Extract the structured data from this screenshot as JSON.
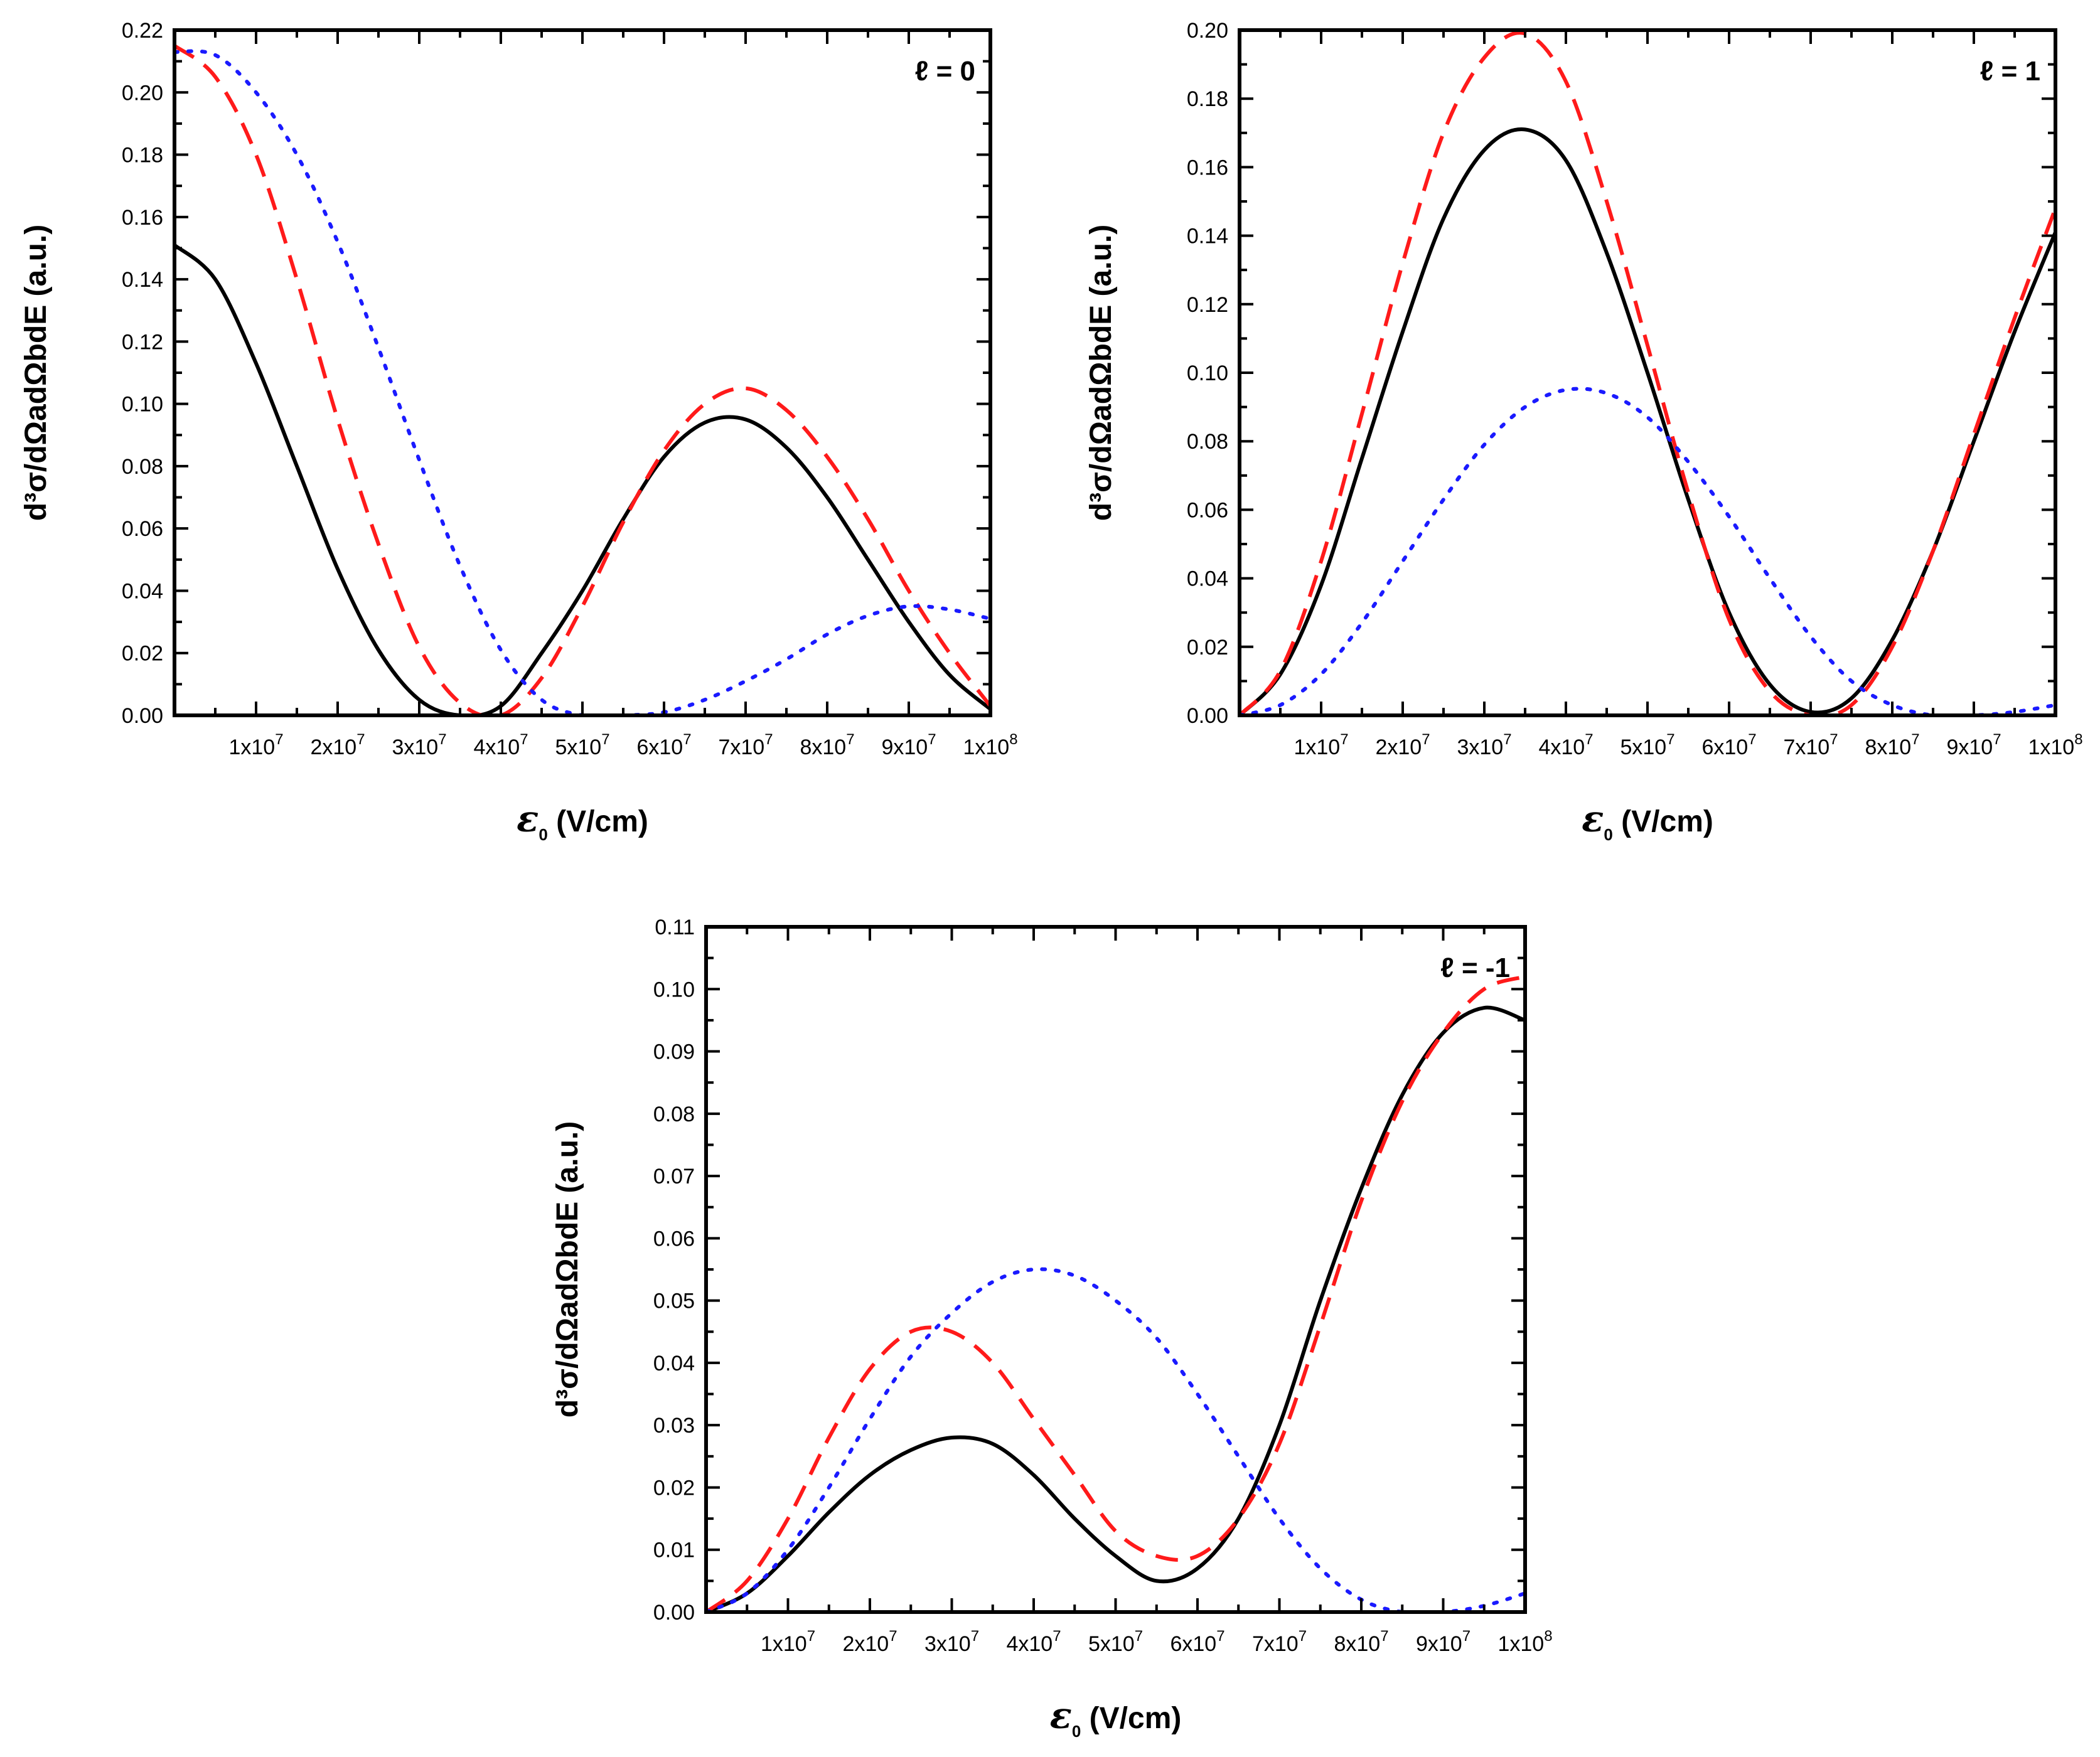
{
  "chart_data": [
    {
      "type": "line",
      "panel_label": "ℓ = 0",
      "xlabel_symbol": "ε",
      "xlabel_subscript": "0",
      "xlabel_units": "(V/cm)",
      "ylabel": "d³σ/dΩadΩbdE (a.u.)",
      "xlim": [
        0,
        100000000
      ],
      "ylim": [
        0,
        0.22
      ],
      "xticks": [
        10000000,
        20000000,
        30000000,
        40000000,
        50000000,
        60000000,
        70000000,
        80000000,
        90000000,
        100000000
      ],
      "xtick_labels": [
        {
          "base": "1x10",
          "exp": "7"
        },
        {
          "base": "2x10",
          "exp": "7"
        },
        {
          "base": "3x10",
          "exp": "7"
        },
        {
          "base": "4x10",
          "exp": "7"
        },
        {
          "base": "5x10",
          "exp": "7"
        },
        {
          "base": "6x10",
          "exp": "7"
        },
        {
          "base": "7x10",
          "exp": "7"
        },
        {
          "base": "8x10",
          "exp": "7"
        },
        {
          "base": "9x10",
          "exp": "7"
        },
        {
          "base": "1x10",
          "exp": "8"
        }
      ],
      "yticks": [
        0,
        0.02,
        0.04,
        0.06,
        0.08,
        0.1,
        0.12,
        0.14,
        0.16,
        0.18,
        0.2,
        0.22
      ],
      "ytick_labels": [
        "0.00",
        "0.02",
        "0.04",
        "0.06",
        "0.08",
        "0.10",
        "0.12",
        "0.14",
        "0.16",
        "0.18",
        "0.20",
        "0.22"
      ],
      "x": [
        0,
        5,
        10,
        15,
        20,
        25,
        30,
        35,
        40,
        45,
        50,
        55,
        60,
        65,
        70,
        75,
        80,
        85,
        90,
        95,
        100
      ],
      "x_scale": 1000000,
      "series": [
        {
          "name": "solid",
          "color": "#000000",
          "dash": "solid",
          "values": [
            0.151,
            0.14,
            0.113,
            0.08,
            0.047,
            0.021,
            0.005,
            0.0,
            0.003,
            0.02,
            0.04,
            0.063,
            0.083,
            0.094,
            0.095,
            0.086,
            0.07,
            0.05,
            0.03,
            0.013,
            0.002
          ]
        },
        {
          "name": "dashed",
          "color": "#ff1a1a",
          "dash": "dashed",
          "values": [
            0.215,
            0.205,
            0.18,
            0.14,
            0.095,
            0.055,
            0.022,
            0.004,
            0.0,
            0.012,
            0.035,
            0.062,
            0.085,
            0.1,
            0.105,
            0.098,
            0.083,
            0.063,
            0.04,
            0.02,
            0.003
          ]
        },
        {
          "name": "dotted",
          "color": "#1a1aff",
          "dash": "dotted",
          "values": [
            0.213,
            0.212,
            0.2,
            0.18,
            0.152,
            0.118,
            0.082,
            0.048,
            0.021,
            0.005,
            0.0,
            0.0,
            0.001,
            0.005,
            0.011,
            0.018,
            0.026,
            0.032,
            0.035,
            0.034,
            0.031
          ]
        }
      ]
    },
    {
      "type": "line",
      "panel_label": "ℓ = 1",
      "xlabel_symbol": "ε",
      "xlabel_subscript": "0",
      "xlabel_units": "(V/cm)",
      "ylabel": "d³σ/dΩadΩbdE (a.u.)",
      "xlim": [
        0,
        100000000
      ],
      "ylim": [
        0,
        0.2
      ],
      "xticks": [
        10000000,
        20000000,
        30000000,
        40000000,
        50000000,
        60000000,
        70000000,
        80000000,
        90000000,
        100000000
      ],
      "xtick_labels": [
        {
          "base": "1x10",
          "exp": "7"
        },
        {
          "base": "2x10",
          "exp": "7"
        },
        {
          "base": "3x10",
          "exp": "7"
        },
        {
          "base": "4x10",
          "exp": "7"
        },
        {
          "base": "5x10",
          "exp": "7"
        },
        {
          "base": "6x10",
          "exp": "7"
        },
        {
          "base": "7x10",
          "exp": "7"
        },
        {
          "base": "8x10",
          "exp": "7"
        },
        {
          "base": "9x10",
          "exp": "7"
        },
        {
          "base": "1x10",
          "exp": "8"
        }
      ],
      "yticks": [
        0,
        0.02,
        0.04,
        0.06,
        0.08,
        0.1,
        0.12,
        0.14,
        0.16,
        0.18,
        0.2
      ],
      "ytick_labels": [
        "0.00",
        "0.02",
        "0.04",
        "0.06",
        "0.08",
        "0.10",
        "0.12",
        "0.14",
        "0.16",
        "0.18",
        "0.20"
      ],
      "x": [
        0,
        5,
        10,
        15,
        20,
        25,
        30,
        35,
        40,
        45,
        50,
        55,
        60,
        65,
        70,
        75,
        80,
        85,
        90,
        95,
        100
      ],
      "x_scale": 1000000,
      "series": [
        {
          "name": "solid",
          "color": "#000000",
          "dash": "solid",
          "values": [
            0.0,
            0.012,
            0.038,
            0.075,
            0.112,
            0.145,
            0.165,
            0.171,
            0.162,
            0.135,
            0.1,
            0.063,
            0.03,
            0.009,
            0.001,
            0.005,
            0.022,
            0.048,
            0.08,
            0.112,
            0.141
          ]
        },
        {
          "name": "dashed",
          "color": "#ff1a1a",
          "dash": "dashed",
          "values": [
            0.0,
            0.013,
            0.045,
            0.088,
            0.132,
            0.17,
            0.192,
            0.199,
            0.185,
            0.15,
            0.108,
            0.065,
            0.028,
            0.007,
            0.0,
            0.003,
            0.02,
            0.048,
            0.082,
            0.116,
            0.148
          ]
        },
        {
          "name": "dotted",
          "color": "#1a1aff",
          "dash": "dotted",
          "values": [
            0.0,
            0.003,
            0.012,
            0.027,
            0.045,
            0.063,
            0.079,
            0.09,
            0.095,
            0.094,
            0.087,
            0.074,
            0.058,
            0.04,
            0.023,
            0.01,
            0.003,
            0.0,
            0.0,
            0.001,
            0.003
          ]
        }
      ]
    },
    {
      "type": "line",
      "panel_label": "ℓ = -1",
      "xlabel_symbol": "ε",
      "xlabel_subscript": "0",
      "xlabel_units": "(V/cm)",
      "ylabel": "d³σ/dΩadΩbdE (a.u.)",
      "xlim": [
        0,
        100000000
      ],
      "ylim": [
        0,
        0.11
      ],
      "xticks": [
        10000000,
        20000000,
        30000000,
        40000000,
        50000000,
        60000000,
        70000000,
        80000000,
        90000000,
        100000000
      ],
      "xtick_labels": [
        {
          "base": "1x10",
          "exp": "7"
        },
        {
          "base": "2x10",
          "exp": "7"
        },
        {
          "base": "3x10",
          "exp": "7"
        },
        {
          "base": "4x10",
          "exp": "7"
        },
        {
          "base": "5x10",
          "exp": "7"
        },
        {
          "base": "6x10",
          "exp": "7"
        },
        {
          "base": "7x10",
          "exp": "7"
        },
        {
          "base": "8x10",
          "exp": "7"
        },
        {
          "base": "9x10",
          "exp": "7"
        },
        {
          "base": "1x10",
          "exp": "8"
        }
      ],
      "yticks": [
        0,
        0.01,
        0.02,
        0.03,
        0.04,
        0.05,
        0.06,
        0.07,
        0.08,
        0.09,
        0.1,
        0.11
      ],
      "ytick_labels": [
        "0.00",
        "0.01",
        "0.02",
        "0.03",
        "0.04",
        "0.05",
        "0.06",
        "0.07",
        "0.08",
        "0.09",
        "0.10",
        "0.11"
      ],
      "x": [
        0,
        5,
        10,
        15,
        20,
        25,
        30,
        35,
        40,
        45,
        50,
        55,
        60,
        65,
        70,
        75,
        80,
        85,
        90,
        95,
        100
      ],
      "x_scale": 1000000,
      "series": [
        {
          "name": "solid",
          "color": "#000000",
          "dash": "solid",
          "values": [
            0.0,
            0.003,
            0.009,
            0.016,
            0.022,
            0.026,
            0.028,
            0.027,
            0.022,
            0.015,
            0.009,
            0.005,
            0.007,
            0.015,
            0.03,
            0.05,
            0.068,
            0.083,
            0.093,
            0.097,
            0.095
          ]
        },
        {
          "name": "dashed",
          "color": "#ff1a1a",
          "dash": "dashed",
          "values": [
            0.0,
            0.005,
            0.015,
            0.028,
            0.039,
            0.045,
            0.045,
            0.04,
            0.031,
            0.022,
            0.013,
            0.009,
            0.009,
            0.015,
            0.027,
            0.046,
            0.066,
            0.082,
            0.093,
            0.1,
            0.102
          ]
        },
        {
          "name": "dotted",
          "color": "#1a1aff",
          "dash": "dotted",
          "values": [
            0.0,
            0.003,
            0.01,
            0.02,
            0.031,
            0.041,
            0.048,
            0.053,
            0.055,
            0.054,
            0.05,
            0.044,
            0.035,
            0.025,
            0.015,
            0.007,
            0.002,
            0.0,
            0.0,
            0.001,
            0.003
          ]
        }
      ]
    }
  ]
}
